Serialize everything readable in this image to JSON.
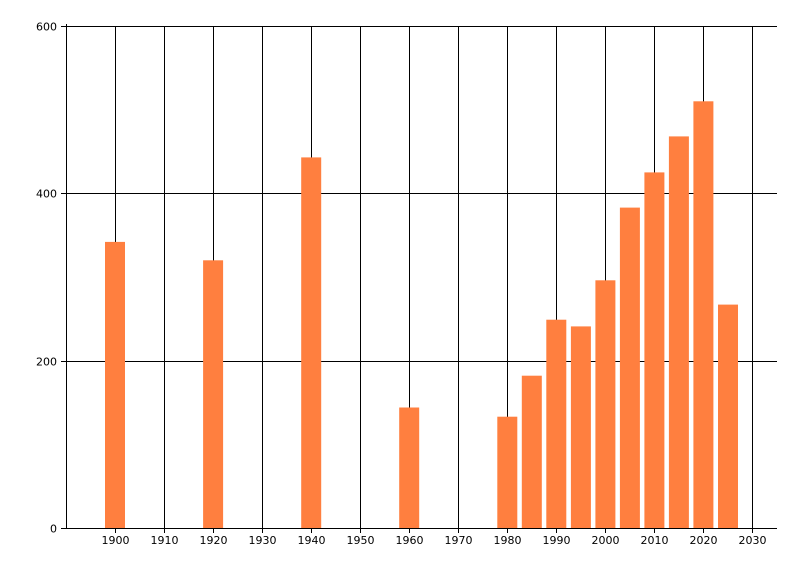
{
  "chart_data": {
    "type": "bar",
    "title": "",
    "xlabel": "",
    "ylabel": "",
    "x": [
      1900,
      1920,
      1940,
      1960,
      1980,
      1985,
      1990,
      1995,
      2000,
      2005,
      2010,
      2015,
      2020,
      2025
    ],
    "values": [
      342,
      320,
      443,
      144,
      133,
      182,
      249,
      241,
      296,
      383,
      425,
      468,
      510,
      267
    ],
    "xlim": [
      1890,
      2035
    ],
    "ylim": [
      0,
      600
    ],
    "x_ticks": [
      1900,
      1910,
      1920,
      1930,
      1940,
      1950,
      1960,
      1970,
      1980,
      1990,
      2000,
      2010,
      2020,
      2030
    ],
    "y_ticks": [
      0,
      200,
      400,
      600
    ],
    "grid": true,
    "bar_color": "#FF7F3F",
    "grid_color": "#000000"
  }
}
